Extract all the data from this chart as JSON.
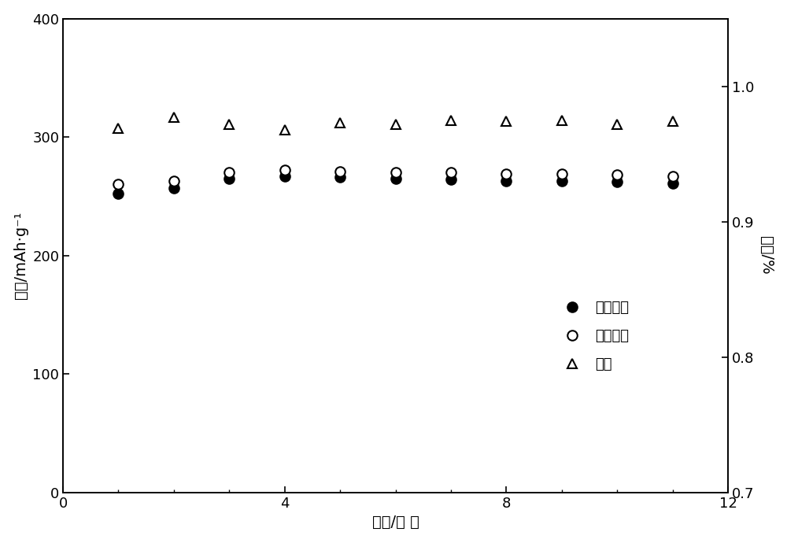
{
  "cycles": [
    1,
    2,
    3,
    4,
    5,
    6,
    7,
    8,
    9,
    10,
    11
  ],
  "discharge_capacity": [
    252,
    257,
    265,
    267,
    266,
    265,
    264,
    263,
    263,
    262,
    261
  ],
  "charge_capacity": [
    260,
    263,
    270,
    272,
    271,
    270,
    270,
    269,
    269,
    268,
    267
  ],
  "efficiency": [
    0.969,
    0.977,
    0.972,
    0.968,
    0.973,
    0.972,
    0.975,
    0.974,
    0.975,
    0.972,
    0.974
  ],
  "xlim": [
    0,
    12
  ],
  "ylim_left": [
    0,
    400
  ],
  "ylim_right": [
    0.7,
    1.05
  ],
  "yticks_left": [
    0,
    100,
    200,
    300,
    400
  ],
  "yticks_right": [
    0.7,
    0.8,
    0.9,
    1.0
  ],
  "xticks": [
    0,
    4,
    8,
    12
  ],
  "xlabel": "循环/次 数",
  "ylabel_left": "容量/mAh·g⁻¹",
  "ylabel_right": "效率/%",
  "legend_discharge": "放电容量",
  "legend_charge": "充电容量",
  "legend_efficiency": "效率",
  "background_color": "#ffffff",
  "marker_size": 9,
  "marker_linewidth": 1.5
}
